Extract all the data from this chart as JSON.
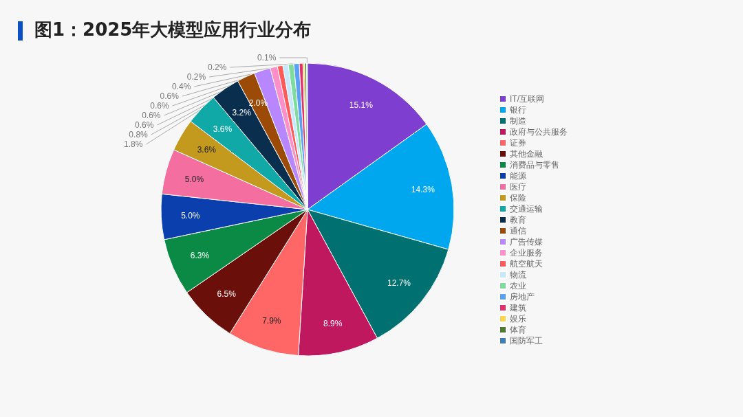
{
  "chart_data": {
    "type": "pie",
    "title": "图1：2025年大模型应用行业分布",
    "categories": [
      "IT/互联网",
      "银行",
      "制造",
      "政府与公共服务",
      "证券",
      "其他金融",
      "消费品与零售",
      "能源",
      "医疗",
      "保险",
      "交通运输",
      "教育",
      "通信",
      "广告传媒",
      "企业服务",
      "航空航天",
      "物流",
      "农业",
      "房地产",
      "建筑",
      "娱乐",
      "体育",
      "国防军工"
    ],
    "values": [
      15.1,
      14.3,
      12.7,
      8.9,
      7.9,
      6.5,
      6.3,
      5.0,
      5.0,
      3.6,
      3.6,
      3.2,
      2.0,
      1.8,
      0.8,
      0.6,
      0.6,
      0.6,
      0.6,
      0.4,
      0.2,
      0.2,
      0.1
    ],
    "colors": [
      "#7e3fd0",
      "#00a6ee",
      "#007070",
      "#c0185f",
      "#ff6666",
      "#6b0f0a",
      "#0a8a45",
      "#0b3fae",
      "#f56ea0",
      "#c49a1e",
      "#10a9a8",
      "#0a2e4e",
      "#9c4a08",
      "#b887ff",
      "#ff8fc8",
      "#ff5a5a",
      "#c6e8fb",
      "#7ddc9e",
      "#5aa0f5",
      "#e0306e",
      "#ffd44d",
      "#4d7a2e",
      "#3a7fb5"
    ],
    "value_labels": [
      "15.1%",
      "14.3%",
      "12.7%",
      "8.9%",
      "7.9%",
      "6.5%",
      "6.3%",
      "5.0%",
      "5.0%",
      "3.6%",
      "3.6%",
      "3.2%",
      "2.0%",
      "1.8%",
      "0.8%",
      "0.6%",
      "0.6%",
      "0.6%",
      "0.6%",
      "0.4%",
      "0.2%",
      "0.2%",
      "0.1%"
    ],
    "legend": "right"
  }
}
